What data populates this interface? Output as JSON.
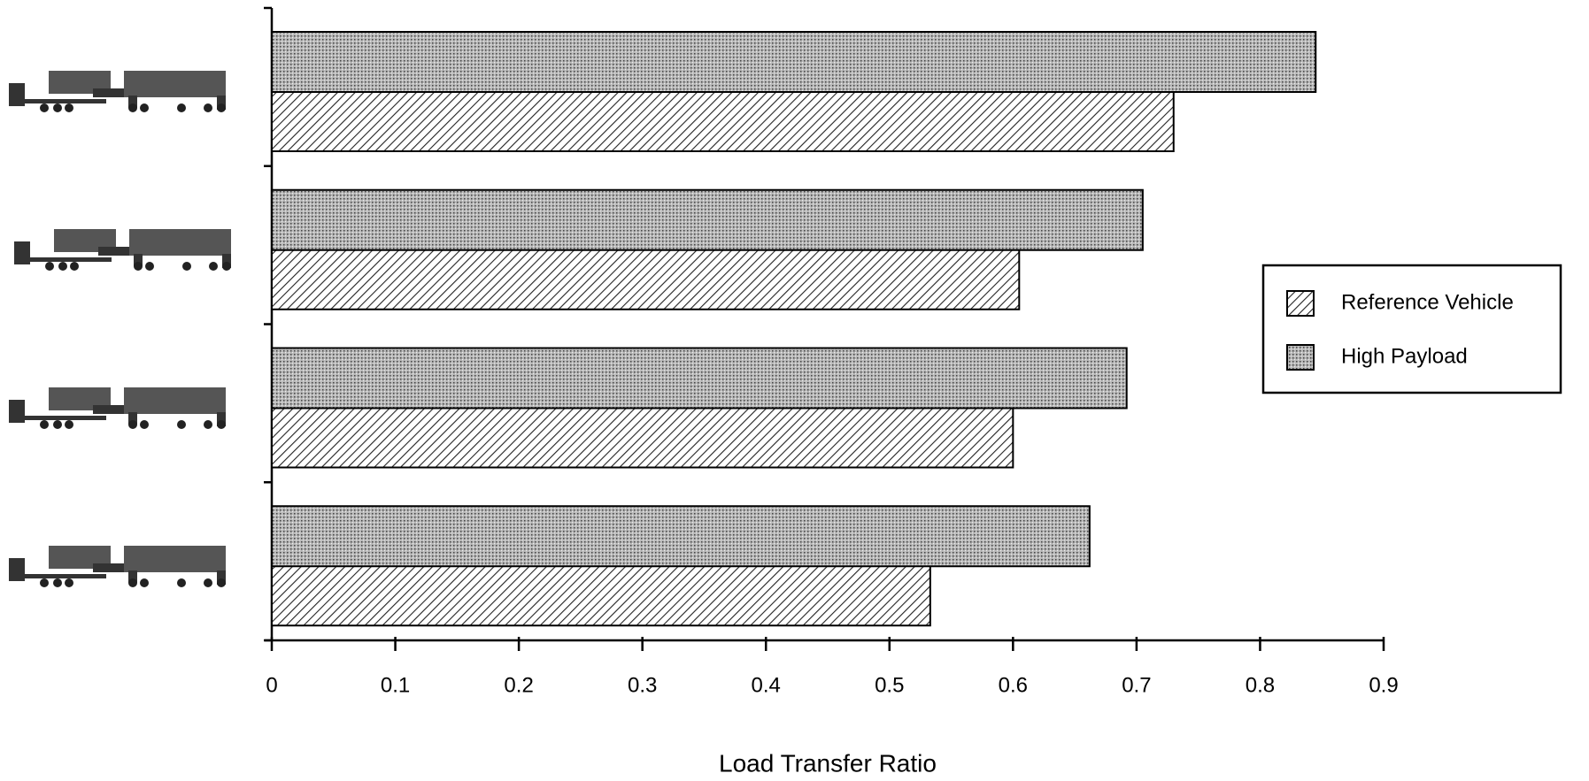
{
  "chart_data": {
    "type": "hbar",
    "xlabel": "Load Transfer Ratio",
    "categories": [
      null,
      null,
      null,
      null
    ],
    "series": [
      {
        "name": "Reference Vehicle",
        "pattern": "hatch",
        "values": [
          0.73,
          0.605,
          0.6,
          0.533
        ]
      },
      {
        "name": "High Payload",
        "pattern": "dots",
        "values": [
          0.845,
          0.705,
          0.692,
          0.662
        ]
      }
    ],
    "xlim": [
      0,
      0.9
    ],
    "xticks": [
      0,
      0.1,
      0.2,
      0.3,
      0.4,
      0.5,
      0.6,
      0.7,
      0.8,
      0.9
    ],
    "legend": "right"
  }
}
